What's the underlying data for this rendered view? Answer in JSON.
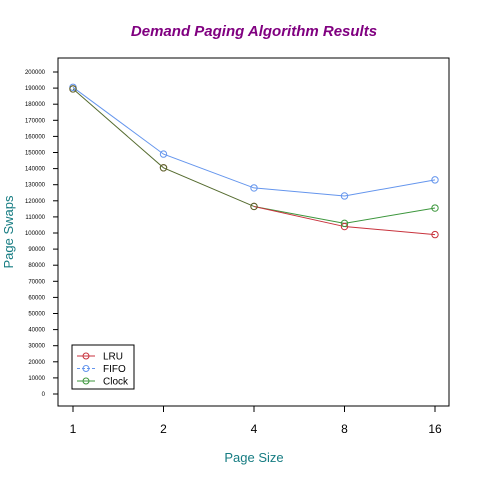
{
  "chart_data": {
    "type": "line",
    "title": "Demand Paging Algorithm Results",
    "xlabel": "Page Size",
    "ylabel": "Page Swaps",
    "categories": [
      "1",
      "2",
      "4",
      "8",
      "16"
    ],
    "y_ticks": [
      "0",
      "10000",
      "20000",
      "30000",
      "40000",
      "50000",
      "60000",
      "70000",
      "80000",
      "90000",
      "100000",
      "110000",
      "120000",
      "130000",
      "140000",
      "150000",
      "160000",
      "170000",
      "180000",
      "190000",
      "200000"
    ],
    "ylim": [
      0,
      200000
    ],
    "legend_position": "bottom-left",
    "series": [
      {
        "name": "LRU",
        "color": "#c8323c",
        "line_style": "solid",
        "values": [
          189500,
          140500,
          116500,
          104000,
          99000
        ]
      },
      {
        "name": "FIFO",
        "color": "#6495ed",
        "line_style": "dashed",
        "values": [
          190500,
          149000,
          128000,
          123000,
          133000
        ]
      },
      {
        "name": "Clock",
        "color": "#3c963c",
        "line_style": "solid",
        "values": [
          189500,
          140500,
          116500,
          106000,
          115500
        ]
      }
    ],
    "overlap_color": "#556b2f",
    "title_color": "#800080",
    "axis_label_color": "#167c82"
  }
}
